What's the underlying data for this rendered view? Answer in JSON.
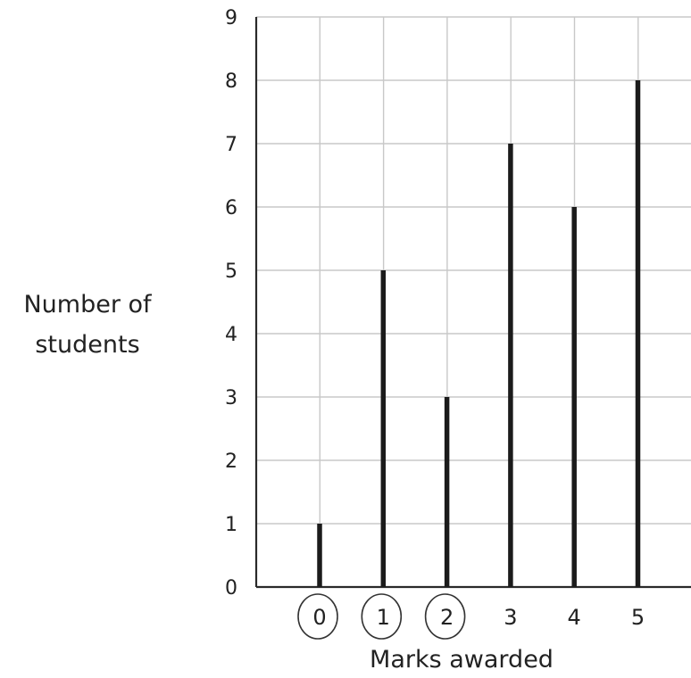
{
  "chart_data": {
    "type": "bar",
    "style": "vertical line chart",
    "categories": [
      "0",
      "1",
      "2",
      "3",
      "4",
      "5"
    ],
    "values": [
      1,
      5,
      3,
      7,
      6,
      8
    ],
    "xlabel": "Marks awarded",
    "ylabel_lines": [
      "Number of",
      "students"
    ],
    "yticks": [
      "0",
      "1",
      "2",
      "3",
      "4",
      "5",
      "6",
      "7",
      "8",
      "9"
    ],
    "ylim": [
      0,
      9
    ],
    "grid": true,
    "circled_categories": [
      "0",
      "1",
      "2"
    ],
    "colors": {
      "bars": "#1b1b1b",
      "grid": "#c8c8c8",
      "axis": "#2a2a2a",
      "text": "#222222"
    }
  }
}
